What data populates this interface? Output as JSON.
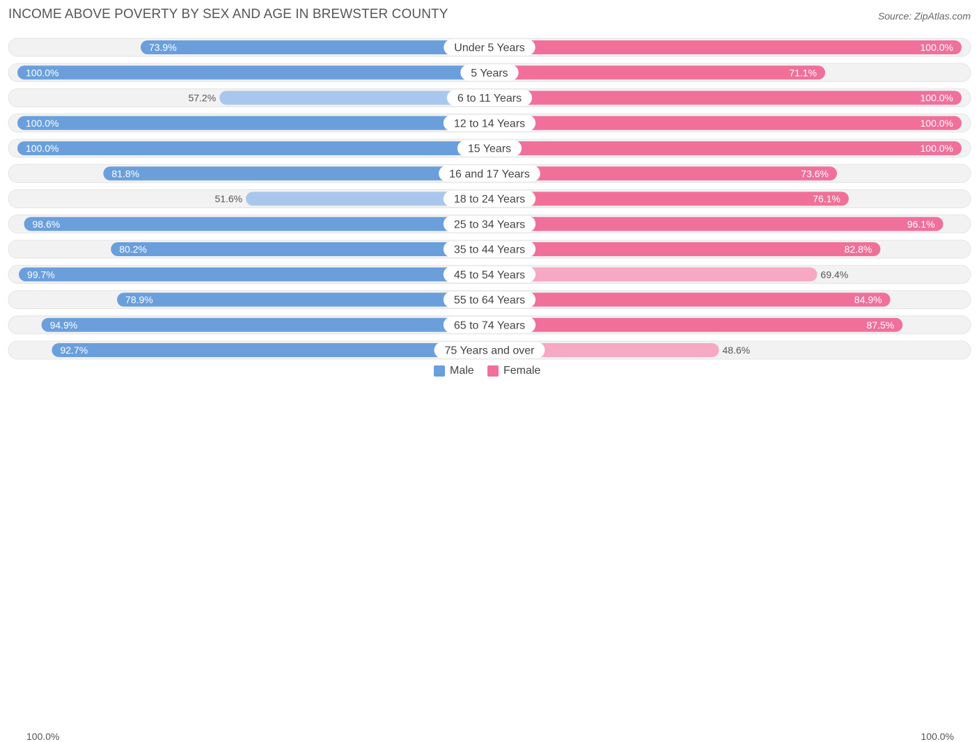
{
  "title": "INCOME ABOVE POVERTY BY SEX AND AGE IN BREWSTER COUNTY",
  "source": "Source: ZipAtlas.com",
  "colors": {
    "male_strong": "#6a9fdc",
    "male_light": "#a9c7ec",
    "female_strong": "#f0709a",
    "female_light": "#f7a8c2",
    "row_bg": "#f2f2f2"
  },
  "legend": {
    "male": "Male",
    "female": "Female"
  },
  "axis": {
    "left_label": "100.0%",
    "right_label": "100.0%"
  },
  "chart_data": {
    "type": "bar",
    "orientation": "horizontal-diverging",
    "title": "INCOME ABOVE POVERTY BY SEX AND AGE IN BREWSTER COUNTY",
    "xlim": [
      0,
      100
    ],
    "categories": [
      "Under 5 Years",
      "5 Years",
      "6 to 11 Years",
      "12 to 14 Years",
      "15 Years",
      "16 and 17 Years",
      "18 to 24 Years",
      "25 to 34 Years",
      "35 to 44 Years",
      "45 to 54 Years",
      "55 to 64 Years",
      "65 to 74 Years",
      "75 Years and over"
    ],
    "series": [
      {
        "name": "Male",
        "values": [
          73.9,
          100.0,
          57.2,
          100.0,
          100.0,
          81.8,
          51.6,
          98.6,
          80.2,
          99.7,
          78.9,
          94.9,
          92.7
        ],
        "labels": [
          "73.9%",
          "100.0%",
          "57.2%",
          "100.0%",
          "100.0%",
          "81.8%",
          "51.6%",
          "98.6%",
          "80.2%",
          "99.7%",
          "78.9%",
          "94.9%",
          "92.7%"
        ]
      },
      {
        "name": "Female",
        "values": [
          100.0,
          71.1,
          100.0,
          100.0,
          100.0,
          73.6,
          76.1,
          96.1,
          82.8,
          69.4,
          84.9,
          87.5,
          48.6
        ],
        "labels": [
          "100.0%",
          "71.1%",
          "100.0%",
          "100.0%",
          "100.0%",
          "73.6%",
          "76.1%",
          "96.1%",
          "82.8%",
          "69.4%",
          "84.9%",
          "87.5%",
          "48.6%"
        ]
      }
    ]
  }
}
